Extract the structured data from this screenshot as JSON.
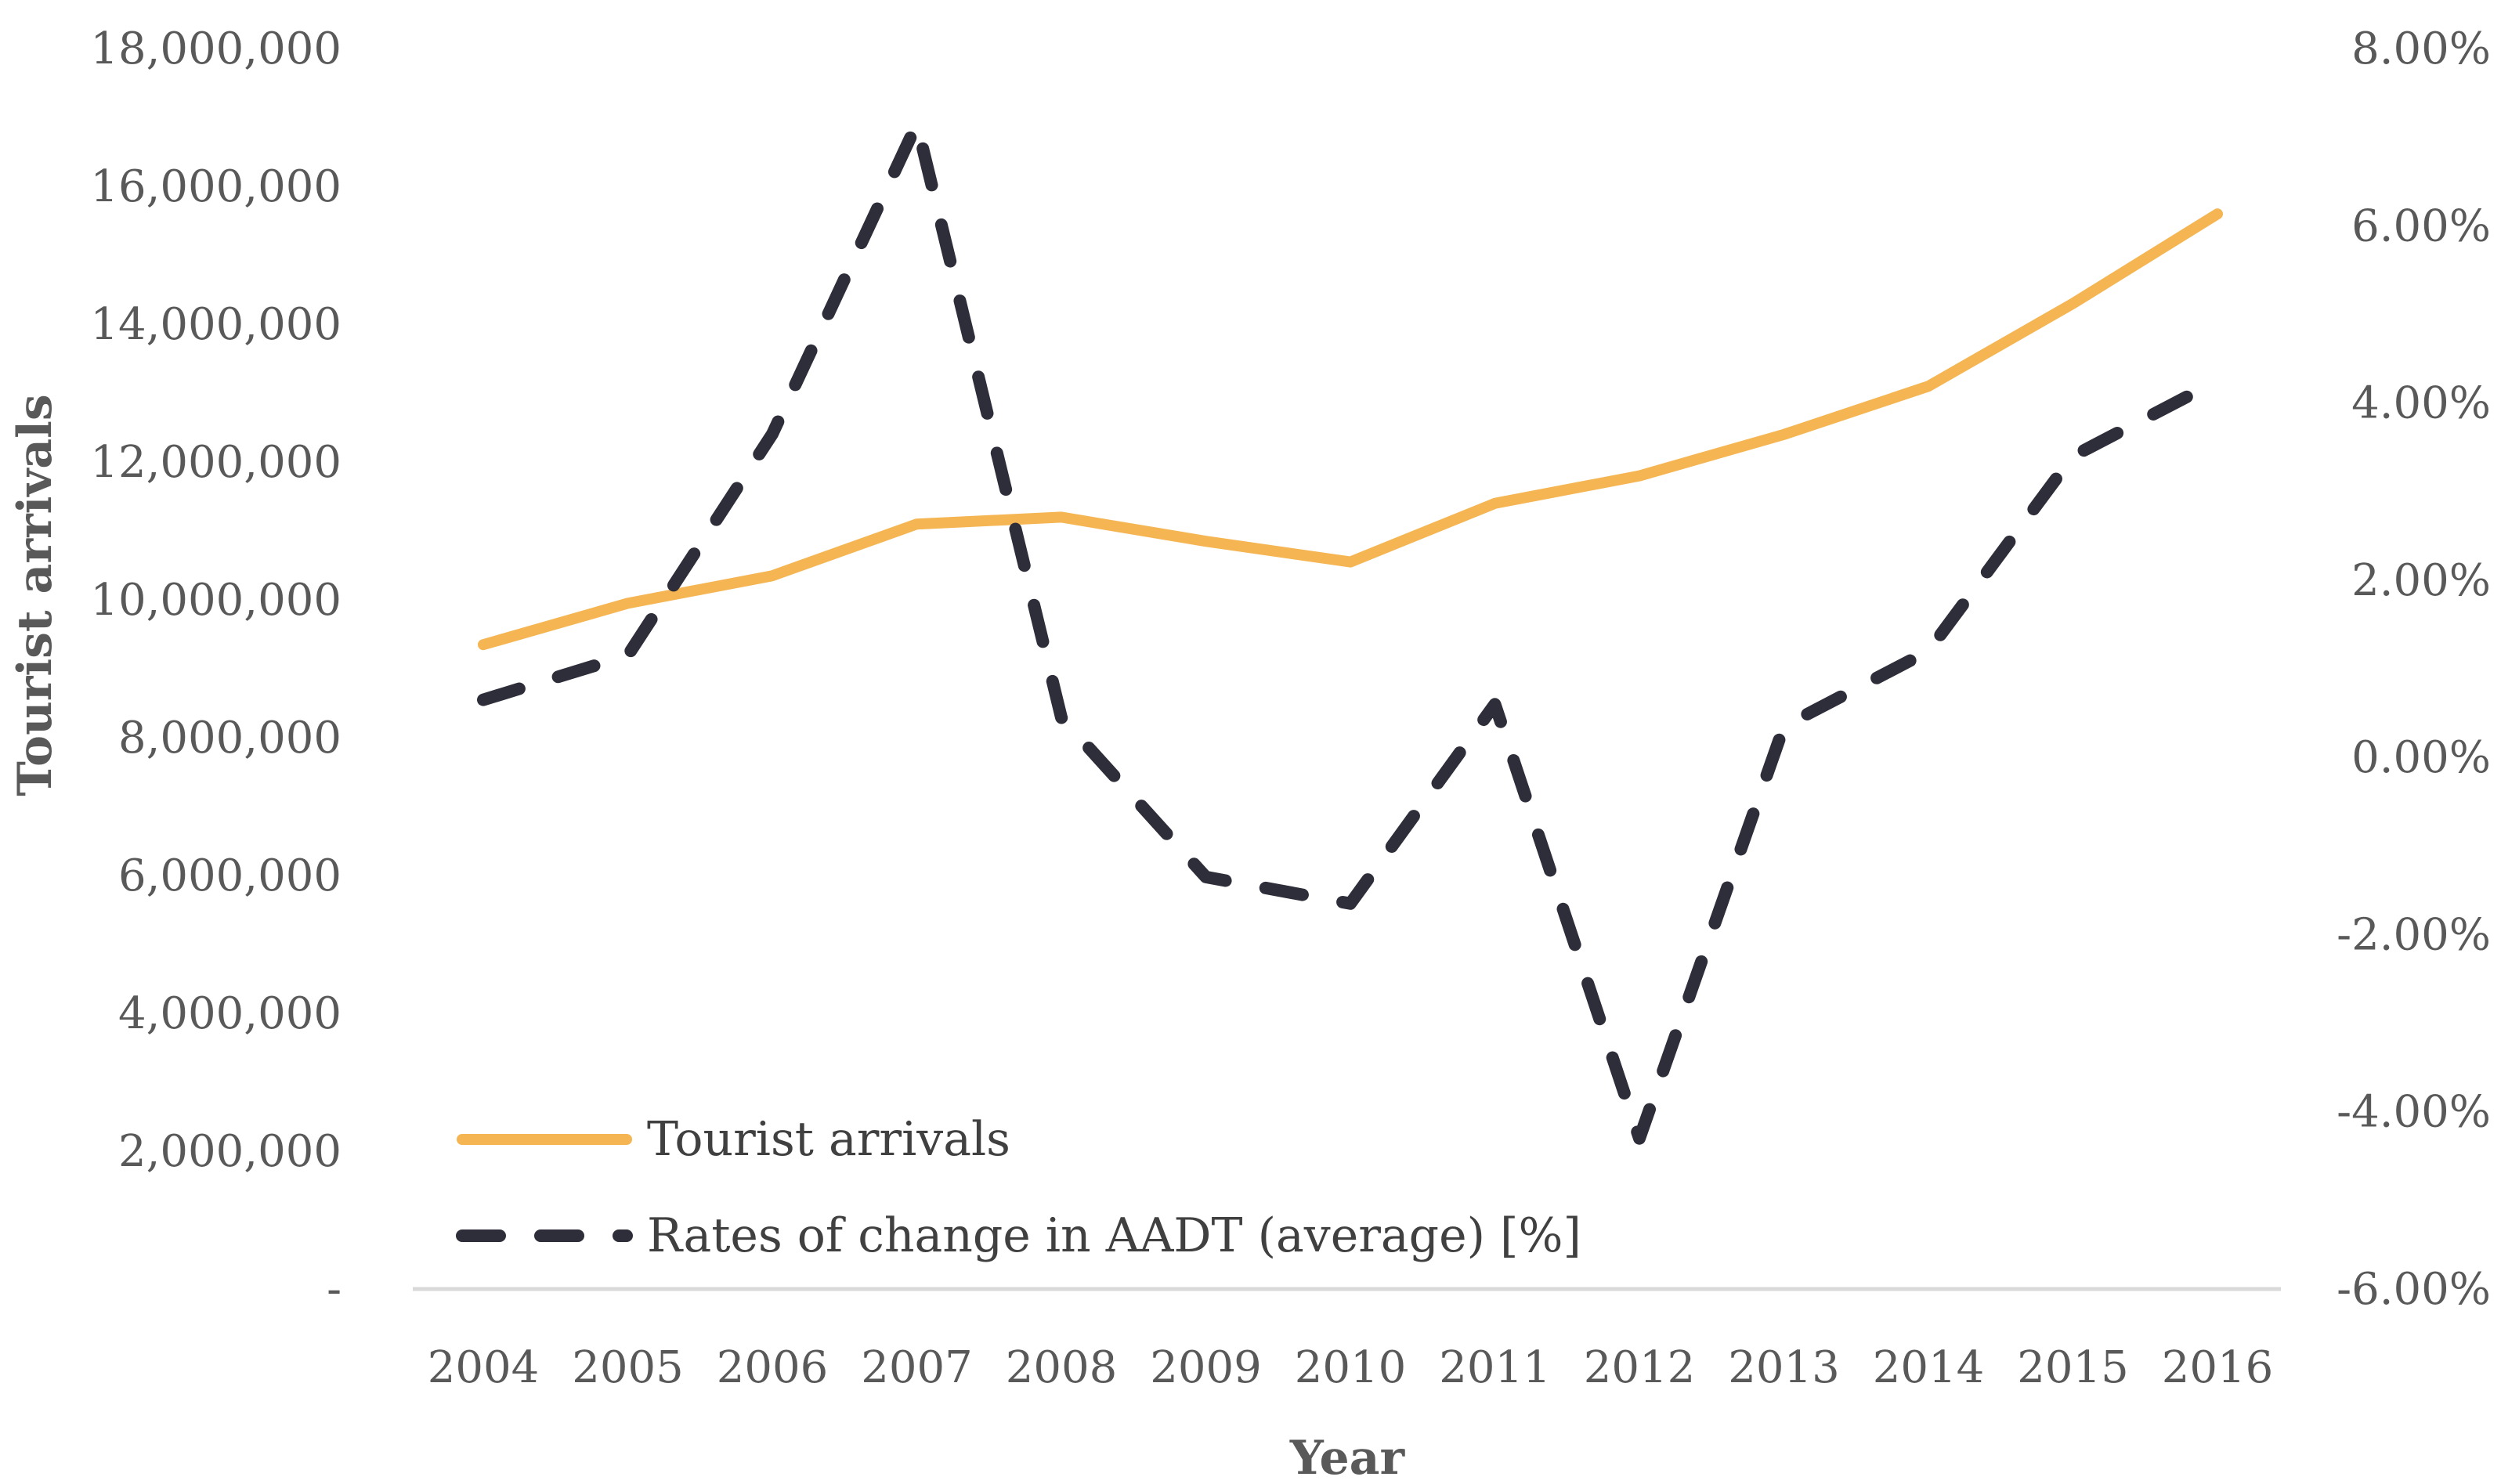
{
  "chart_data": {
    "type": "line",
    "title": "",
    "xlabel": "Year",
    "ylabel": "Tourist arrivals",
    "categories": [
      "2004",
      "2005",
      "2006",
      "2007",
      "2008",
      "2009",
      "2010",
      "2011",
      "2012",
      "2013",
      "2014",
      "2015",
      "2016"
    ],
    "y_left": {
      "ylim": [
        0,
        18000000
      ],
      "ticks": [
        0,
        2000000,
        4000000,
        6000000,
        8000000,
        10000000,
        12000000,
        14000000,
        16000000,
        18000000
      ],
      "tick_labels": [
        "-",
        "2,000,000",
        "4,000,000",
        "6,000,000",
        "8,000,000",
        "10,000,000",
        "12,000,000",
        "14,000,000",
        "16,000,000",
        "18,000,000"
      ]
    },
    "y_right": {
      "ylim": [
        -6,
        8
      ],
      "ticks": [
        -6,
        -4,
        -2,
        0,
        2,
        4,
        6,
        8
      ],
      "tick_labels": [
        "-6.00%",
        "-4.00%",
        "-2.00%",
        "0.00%",
        "2.00%",
        "4.00%",
        "6.00%",
        "8.00%"
      ]
    },
    "series": [
      {
        "name": "Tourist arrivals",
        "axis": "left",
        "style": "solid",
        "color": "#F4B552",
        "values": [
          9350000,
          9950000,
          10350000,
          11100000,
          11200000,
          10850000,
          10550000,
          11400000,
          11800000,
          12400000,
          13100000,
          14300000,
          15600000
        ]
      },
      {
        "name": "Rates of change in AADT (average) [%]",
        "axis": "right",
        "style": "dashed",
        "color": "#2E2E3A",
        "values": [
          0.65,
          1.15,
          3.65,
          7.15,
          0.45,
          -1.35,
          -1.65,
          0.6,
          -4.3,
          0.35,
          1.2,
          3.4,
          4.25
        ]
      }
    ],
    "legend_position": "bottom-left-inside",
    "grid": false
  }
}
